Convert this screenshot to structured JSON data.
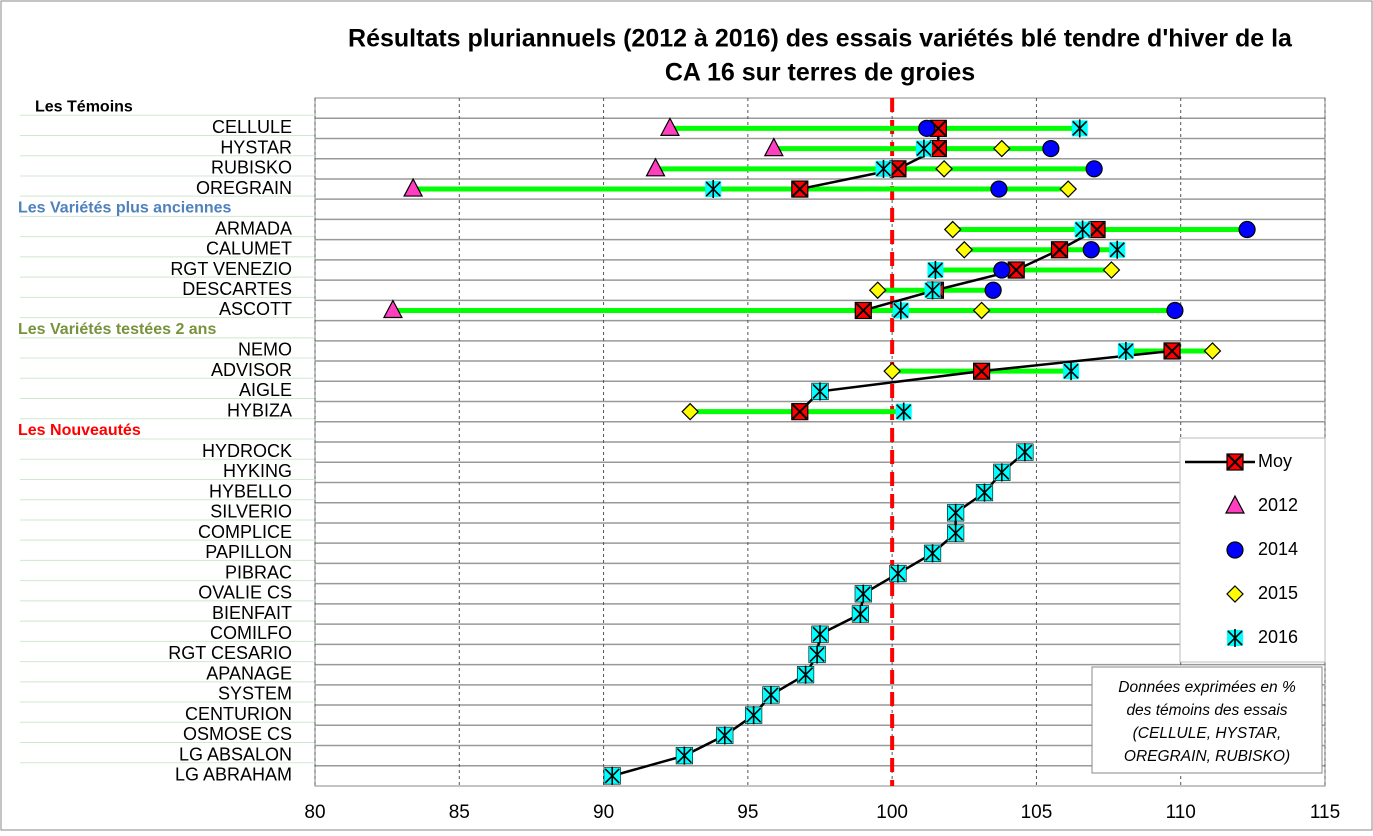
{
  "chart_data": {
    "type": "dot",
    "title": [
      "Résultats pluriannuels (2012 à 2016) des essais variétés  blé tendre d'hiver de la",
      "CA 16 sur terres de groies"
    ],
    "categories": [
      null,
      "CELLULE",
      "HYSTAR",
      "RUBISKO",
      "OREGRAIN",
      null,
      "ARMADA",
      "CALUMET",
      "RGT VENEZIO",
      "DESCARTES",
      "ASCOTT",
      null,
      "NEMO",
      "ADVISOR",
      "AIGLE",
      "HYBIZA",
      null,
      "HYDROCK",
      "HYKING",
      "HYBELLO",
      "SILVERIO",
      "COMPLICE",
      "PAPILLON",
      "PIBRAC",
      "OVALIE CS",
      "BIENFAIT",
      "COMILFO",
      "RGT CESARIO",
      "APANAGE",
      "SYSTEM",
      "CENTURION",
      "OSMOSE CS",
      "LG ABSALON",
      "LG ABRAHAM"
    ],
    "groups": [
      {
        "label": "Les Témoins",
        "color": "#000000"
      },
      {
        "label": "Les Variétés plus anciennes",
        "color": "#4f81bd"
      },
      {
        "label": "Les Variétés testées 2 ans",
        "color": "#77933c"
      },
      {
        "label": "Les Nouveautés",
        "color": "#ff0000"
      }
    ],
    "series": [
      {
        "name": "Moy",
        "color": "#ff0000",
        "marker": "square",
        "line": true,
        "values": [
          null,
          101.6,
          101.6,
          100.2,
          96.8,
          null,
          107.1,
          105.8,
          104.3,
          101.5,
          99.0,
          null,
          109.7,
          103.1,
          97.5,
          96.8,
          null,
          104.6,
          103.8,
          103.2,
          102.2,
          102.2,
          101.4,
          100.2,
          99.0,
          98.9,
          97.5,
          97.4,
          97.0,
          95.8,
          95.2,
          94.2,
          92.8,
          90.3
        ]
      },
      {
        "name": "2012",
        "color": "#ff3fbf",
        "marker": "triangle",
        "values": [
          null,
          92.3,
          95.9,
          91.8,
          83.4,
          null,
          null,
          null,
          null,
          null,
          82.7,
          null,
          null,
          null,
          null,
          null,
          null,
          null,
          null,
          null,
          null,
          null,
          null,
          null,
          null,
          null,
          null,
          null,
          null,
          null,
          null,
          null,
          null,
          null
        ]
      },
      {
        "name": "2014",
        "color": "#0000ff",
        "marker": "circle",
        "values": [
          null,
          101.2,
          105.5,
          107.0,
          103.7,
          null,
          112.3,
          106.9,
          103.8,
          103.5,
          109.8,
          null,
          null,
          null,
          null,
          null,
          null,
          null,
          null,
          null,
          null,
          null,
          null,
          null,
          null,
          null,
          null,
          null,
          null,
          null,
          null,
          null,
          null,
          null
        ]
      },
      {
        "name": "2015",
        "color": "#ffff00",
        "marker": "diamond",
        "values": [
          null,
          null,
          103.8,
          101.8,
          106.1,
          null,
          102.1,
          102.5,
          107.6,
          99.5,
          103.1,
          null,
          111.1,
          100.0,
          null,
          93.0,
          null,
          null,
          null,
          null,
          null,
          null,
          null,
          null,
          null,
          null,
          null,
          null,
          null,
          null,
          null,
          null,
          null,
          null
        ]
      },
      {
        "name": "2016",
        "color": "#00ffff",
        "marker": "star",
        "values": [
          null,
          106.5,
          101.1,
          99.7,
          93.8,
          null,
          106.6,
          107.8,
          101.5,
          101.4,
          100.3,
          null,
          108.1,
          106.2,
          97.5,
          100.4,
          null,
          104.6,
          103.8,
          103.2,
          102.2,
          102.2,
          101.4,
          100.2,
          99.0,
          98.9,
          97.5,
          97.4,
          97.0,
          95.8,
          95.2,
          94.2,
          92.8,
          90.3
        ]
      }
    ],
    "range_color": "#00ff00",
    "reference_line": 100,
    "reference_color": "#ff0000",
    "xlim": [
      80,
      115
    ],
    "xticks": [
      80,
      85,
      90,
      95,
      100,
      105,
      110,
      115
    ],
    "grid": true,
    "legend": "right",
    "note": [
      "Données exprimées en %",
      "des témoins des essais",
      "(CELLULE, HYSTAR,",
      "OREGRAIN, RUBISKO)"
    ]
  }
}
